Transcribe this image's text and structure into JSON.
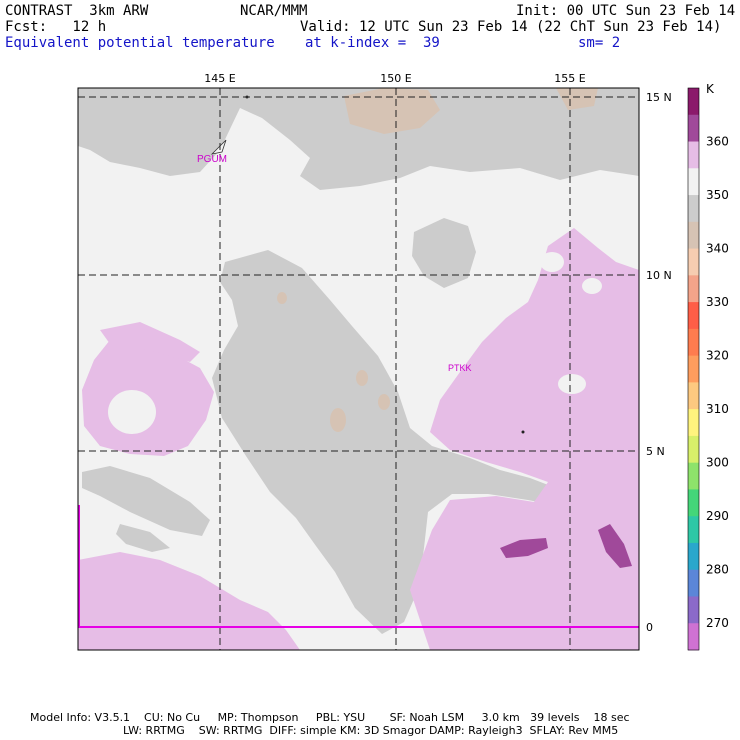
{
  "header": {
    "model": "CONTRAST  3km ARW",
    "org": "NCAR/MMM",
    "init": "Init: 00 UTC Sun 23 Feb 14",
    "fcst": "Fcst:   12 h",
    "valid": "Valid: 12 UTC Sun 23 Feb 14 (22 ChT Sun 23 Feb 14)",
    "field": "Equivalent potential temperature",
    "level": "at k-index =  39",
    "smooth": "sm= 2"
  },
  "map": {
    "lon_labels": [
      "145 E",
      "150 E",
      "155 E"
    ],
    "lat_labels": [
      "15 N",
      "10 N",
      "5 N",
      "0"
    ],
    "stations": [
      "PGUM",
      "PTKK"
    ]
  },
  "colorbar": {
    "unit": "K",
    "labels": [
      "270",
      "280",
      "290",
      "300",
      "310",
      "320",
      "330",
      "340",
      "350",
      "360"
    ],
    "colors": [
      "#8b1a6b",
      "#a0499a",
      "#e6bde6",
      "#f2f2f2",
      "#cccccc",
      "#d6c3b4",
      "#f6cdb1",
      "#f4a48a",
      "#fe5e47",
      "#fe7c4f",
      "#fe9d5e",
      "#fdc980",
      "#fff47e",
      "#d8f06a",
      "#8ee36b",
      "#44d679",
      "#2ec8a6",
      "#2aa7cc",
      "#5b86d8",
      "#8b6ac9",
      "#cf72d3"
    ]
  },
  "footer": {
    "line1": "Model Info: V3.5.1    CU: No Cu     MP: Thompson     PBL: YSU       SF: Noah LSM     3.0 km   39 levels    18 sec",
    "line2": "LW: RRTMG    SW: RRTMG  DIFF: simple KM: 3D Smagor DAMP: Rayleigh3  SFLAY: Rev MM5"
  }
}
